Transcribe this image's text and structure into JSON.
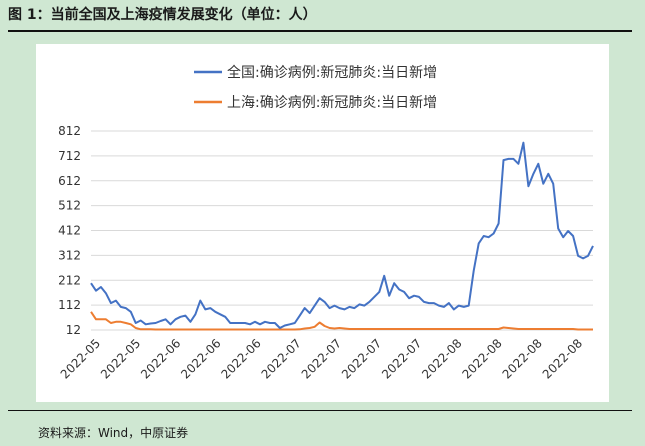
{
  "figure": {
    "title": "图 1：当前全国及上海疫情发展变化（单位：人）",
    "source": "资料来源：Wind，中原证券"
  },
  "chart_data": {
    "type": "line",
    "title": "",
    "xlabel": "",
    "ylabel": "",
    "ylim": [
      12,
      812
    ],
    "yticks": [
      12,
      112,
      212,
      312,
      412,
      512,
      612,
      712,
      812
    ],
    "xtick_labels": [
      "2022-05",
      "2022-05",
      "2022-06",
      "2022-06",
      "2022-06",
      "2022-07",
      "2022-07",
      "2022-07",
      "2022-07",
      "2022-08",
      "2022-08",
      "2022-08",
      "2022-08"
    ],
    "grid": "horizontal",
    "legend_position": "top",
    "series": [
      {
        "name": "全国:确诊病例:新冠肺炎:当日新增",
        "color": "#4472c4",
        "values": [
          200,
          170,
          185,
          160,
          120,
          130,
          105,
          100,
          85,
          40,
          50,
          35,
          38,
          40,
          48,
          55,
          35,
          55,
          65,
          70,
          45,
          75,
          130,
          95,
          100,
          85,
          75,
          65,
          40,
          40,
          40,
          40,
          35,
          45,
          35,
          45,
          40,
          40,
          20,
          30,
          35,
          40,
          70,
          100,
          80,
          110,
          140,
          125,
          100,
          110,
          100,
          95,
          105,
          100,
          115,
          110,
          125,
          145,
          165,
          230,
          150,
          200,
          175,
          165,
          140,
          150,
          145,
          125,
          120,
          120,
          110,
          105,
          120,
          95,
          110,
          105,
          110,
          250,
          360,
          390,
          385,
          400,
          440,
          695,
          700,
          700,
          680,
          765,
          590,
          640,
          680,
          600,
          640,
          600,
          420,
          385,
          410,
          390,
          310,
          300,
          310,
          350
        ]
      },
      {
        "name": "上海:确诊病例:新冠肺炎:当日新增",
        "color": "#ed7d31",
        "values": [
          85,
          55,
          55,
          55,
          40,
          45,
          45,
          40,
          35,
          20,
          15,
          15,
          15,
          14,
          14,
          14,
          14,
          14,
          14,
          14,
          14,
          14,
          14,
          14,
          14,
          14,
          14,
          14,
          14,
          14,
          14,
          14,
          14,
          14,
          14,
          14,
          14,
          14,
          14,
          14,
          14,
          14,
          15,
          18,
          20,
          25,
          42,
          28,
          20,
          18,
          20,
          18,
          16,
          16,
          16,
          16,
          16,
          16,
          16,
          16,
          16,
          16,
          16,
          16,
          16,
          16,
          16,
          16,
          16,
          16,
          16,
          16,
          16,
          16,
          16,
          16,
          16,
          16,
          16,
          16,
          16,
          16,
          16,
          22,
          20,
          18,
          16,
          16,
          16,
          16,
          16,
          16,
          16,
          16,
          16,
          16,
          16,
          16,
          14,
          14,
          14,
          14
        ]
      }
    ]
  }
}
